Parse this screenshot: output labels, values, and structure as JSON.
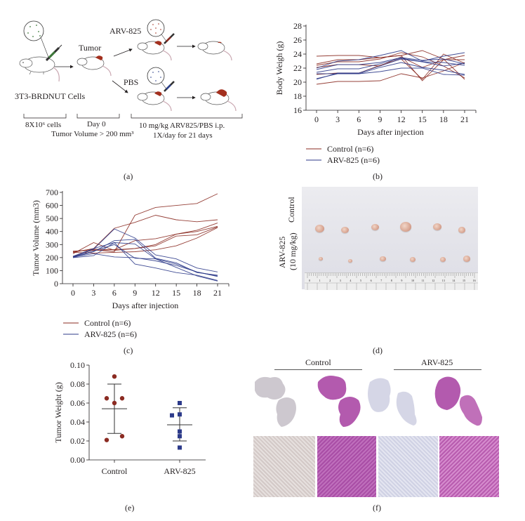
{
  "panel_labels": {
    "a": "(a)",
    "b": "(b)",
    "c": "(c)",
    "d": "(d)",
    "e": "(e)",
    "f": "(f)"
  },
  "schematic": {
    "cells_label": "3T3-BRDNUT Cells",
    "tumor_label": "Tumor",
    "arv_label": "ARV-825",
    "pbs_label": "PBS",
    "phase1": "8X10⁶ cells",
    "phase2": "Day 0",
    "phase2b": "Tumor Volume > 200 mm³",
    "phase3a": "10 mg/kg ARV825/PBS i.p.",
    "phase3b": "1X/day for 21 days",
    "colors": {
      "tumor": "#a3301e",
      "cells_syringe": "#3d7a3a",
      "arv_syringe": "#8a2a1f",
      "pbs_syringe": "#2a3f8a",
      "mouse_tail": "#c9a6b0"
    }
  },
  "photo": {
    "row_top_label": "Control",
    "row_bottom_label_1": "ARV-825",
    "row_bottom_label_2": "(10 mg/kg)",
    "ruler_numbers": [
      "0",
      "1",
      "2",
      "3",
      "4",
      "5",
      "6",
      "7",
      "8",
      "9",
      "10",
      "11",
      "12",
      "13",
      "14",
      "15",
      "16"
    ]
  },
  "histology": {
    "group1": "Control",
    "group2": "ARV-825",
    "colors": {
      "ihc_slide": "#c9c4cc",
      "he_slide": "#b35aae",
      "ihc_tile": "#d8d2d4",
      "he_tile": "#b05cad",
      "ihc_tile_arv": "#d5d6e6",
      "he_tile_arv": "#c268b8"
    }
  },
  "chart_data": [
    {
      "id": "b",
      "type": "line",
      "title": "",
      "xlabel": "Days after injection",
      "ylabel": "Body Weigh (g)",
      "x": [
        0,
        3,
        6,
        9,
        12,
        15,
        18,
        21
      ],
      "xticks": [
        "0",
        "3",
        "6",
        "9",
        "12",
        "15",
        "18",
        "21"
      ],
      "yticks": [
        "16",
        "18",
        "20",
        "22",
        "24",
        "26",
        "28"
      ],
      "ylim": [
        16,
        28
      ],
      "xlim": [
        0,
        21
      ],
      "legend": [
        "Control (n=6)",
        "ARV-825 (n=6)"
      ],
      "legend_position": "bottom-left",
      "colors": {
        "Control": "#8b2b22",
        "ARV-825": "#2c3a8a"
      },
      "series": [
        {
          "name": "Control",
          "values": [
            23.7,
            23.8,
            23.8,
            23.5,
            23.8,
            24.5,
            23.3,
            20.4
          ]
        },
        {
          "name": "Control",
          "values": [
            22.6,
            23.2,
            23.2,
            23.5,
            23.8,
            20.2,
            23.2,
            23.8
          ]
        },
        {
          "name": "Control",
          "values": [
            22.4,
            22.9,
            22.9,
            23.3,
            24.2,
            23.6,
            22.3,
            20.6
          ]
        },
        {
          "name": "Control",
          "values": [
            22.1,
            22.5,
            22.5,
            22.3,
            23.6,
            22.1,
            23.2,
            23.2
          ]
        },
        {
          "name": "Control",
          "values": [
            21.1,
            21.3,
            21.3,
            22.4,
            23.3,
            20.4,
            24.0,
            22.7
          ]
        },
        {
          "name": "Control",
          "values": [
            19.7,
            20.1,
            20.1,
            20.2,
            21.2,
            20.6,
            21.6,
            22.8
          ]
        },
        {
          "name": "ARV-825",
          "values": [
            22.0,
            23.0,
            23.2,
            23.8,
            24.5,
            23.0,
            23.7,
            24.2
          ]
        },
        {
          "name": "ARV-825",
          "values": [
            21.8,
            22.5,
            22.5,
            22.8,
            23.5,
            23.1,
            23.3,
            22.6
          ]
        },
        {
          "name": "ARV-825",
          "values": [
            21.4,
            21.9,
            21.9,
            22.6,
            23.4,
            22.9,
            22.8,
            22.4
          ]
        },
        {
          "name": "ARV-825",
          "values": [
            21.2,
            21.2,
            21.2,
            22.1,
            22.8,
            22.1,
            21.7,
            21.1
          ]
        },
        {
          "name": "ARV-825",
          "values": [
            20.5,
            21.2,
            21.2,
            21.5,
            22.0,
            22.0,
            21.1,
            21.0
          ]
        },
        {
          "name": "ARV-825",
          "values": [
            20.4,
            21.3,
            21.3,
            22.3,
            23.3,
            22.9,
            22.3,
            22.7
          ]
        }
      ]
    },
    {
      "id": "c",
      "type": "line",
      "title": "",
      "xlabel": "Days after injection",
      "ylabel": "Tumor Volume (mm3)",
      "x": [
        0,
        3,
        6,
        9,
        12,
        15,
        18,
        21
      ],
      "xticks": [
        "0",
        "3",
        "6",
        "9",
        "12",
        "15",
        "18",
        "21"
      ],
      "yticks": [
        "0",
        "100",
        "200",
        "300",
        "400",
        "500",
        "600",
        "700"
      ],
      "ylim": [
        0,
        700
      ],
      "xlim": [
        0,
        21
      ],
      "legend": [
        "Control (n=6)",
        "ARV-825 (n=6)"
      ],
      "legend_position": "bottom-left",
      "colors": {
        "Control": "#8b2b22",
        "ARV-825": "#2c3a8a"
      },
      "series": [
        {
          "name": "Control",
          "values": [
            210,
            260,
            245,
            525,
            585,
            600,
            615,
            690
          ]
        },
        {
          "name": "Control",
          "values": [
            240,
            270,
            425,
            470,
            525,
            490,
            475,
            490
          ]
        },
        {
          "name": "Control",
          "values": [
            230,
            315,
            255,
            270,
            300,
            380,
            410,
            465
          ]
        },
        {
          "name": "Control",
          "values": [
            245,
            265,
            260,
            330,
            345,
            380,
            400,
            440
          ]
        },
        {
          "name": "Control",
          "values": [
            250,
            255,
            260,
            270,
            290,
            365,
            375,
            435
          ]
        },
        {
          "name": "Control",
          "values": [
            240,
            235,
            240,
            245,
            260,
            290,
            350,
            430
          ]
        },
        {
          "name": "ARV-825",
          "values": [
            205,
            265,
            420,
            350,
            220,
            190,
            120,
            90
          ]
        },
        {
          "name": "ARV-825",
          "values": [
            200,
            245,
            330,
            340,
            195,
            160,
            85,
            65
          ]
        },
        {
          "name": "ARV-825",
          "values": [
            210,
            270,
            315,
            305,
            190,
            150,
            90,
            55
          ]
        },
        {
          "name": "ARV-825",
          "values": [
            205,
            250,
            300,
            195,
            190,
            125,
            60,
            20
          ]
        },
        {
          "name": "ARV-825",
          "values": [
            200,
            215,
            315,
            150,
            120,
            85,
            65,
            25
          ]
        },
        {
          "name": "ARV-825",
          "values": [
            205,
            230,
            205,
            200,
            175,
            140,
            90,
            60
          ]
        }
      ]
    },
    {
      "id": "e",
      "type": "scatter",
      "title": "",
      "xlabel": "",
      "ylabel": "Tumor Weight (g)",
      "categories": [
        "Control",
        "ARV-825"
      ],
      "yticks": [
        "0.00",
        "0.02",
        "0.04",
        "0.06",
        "0.08",
        "0.10"
      ],
      "ylim": [
        0.0,
        0.1
      ],
      "colors": {
        "Control": "#8b2b22",
        "ARV-825": "#2c3a8a"
      },
      "series": [
        {
          "name": "Control",
          "marker": "circle",
          "points": [
            [
              -0.35,
              0.021
            ],
            [
              -0.35,
              0.065
            ],
            [
              0,
              0.088
            ],
            [
              0,
              0.06
            ],
            [
              0.35,
              0.065
            ],
            [
              0.35,
              0.025
            ]
          ],
          "mean": 0.054,
          "sd_low": 0.028,
          "sd_high": 0.08
        },
        {
          "name": "ARV-825",
          "marker": "square",
          "points": [
            [
              -0.35,
              0.047
            ],
            [
              0,
              0.06
            ],
            [
              0,
              0.048
            ],
            [
              0,
              0.03
            ],
            [
              0,
              0.025
            ],
            [
              0,
              0.013
            ]
          ],
          "mean": 0.037,
          "sd_low": 0.02,
          "sd_high": 0.055
        }
      ]
    }
  ]
}
